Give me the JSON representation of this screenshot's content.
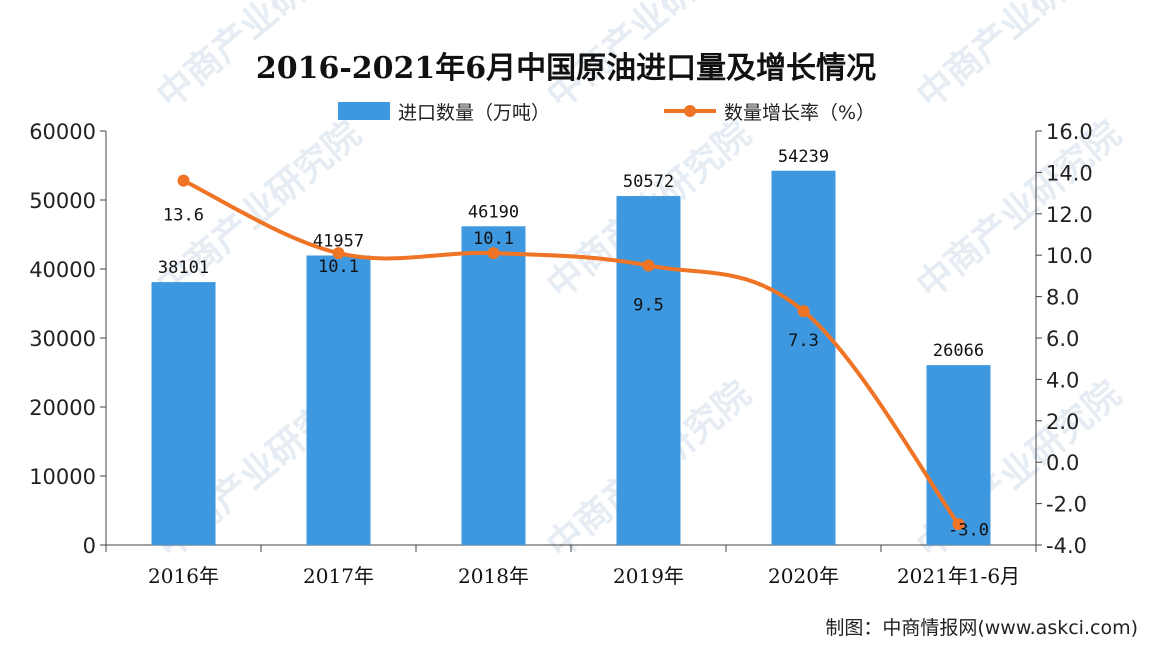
{
  "chart_data": {
    "type": "bar",
    "title": "2016-2021年6月中国原油进口量及增长情况",
    "categories": [
      "2016年",
      "2017年",
      "2018年",
      "2019年",
      "2020年",
      "2021年1-6月"
    ],
    "series": [
      {
        "name": "进口数量（万吨）",
        "type": "bar",
        "axis": "left",
        "color": "#3d98e0",
        "values": [
          38101,
          41957,
          46190,
          50572,
          54239,
          26066
        ],
        "labels": [
          "38101",
          "41957",
          "46190",
          "50572",
          "54239",
          "26066"
        ]
      },
      {
        "name": "数量增长率（%）",
        "type": "line",
        "axis": "right",
        "color": "#ef7425",
        "values": [
          13.6,
          10.1,
          10.1,
          9.5,
          7.3,
          -3.0
        ],
        "labels": [
          "13.6",
          "10.1",
          "10.1",
          "9.5",
          "7.3",
          "-3.0"
        ]
      }
    ],
    "y_left": {
      "ylim": [
        0,
        60000
      ],
      "ticks": [
        "0",
        "10000",
        "20000",
        "30000",
        "40000",
        "50000",
        "60000"
      ]
    },
    "y_right": {
      "ylim": [
        -4,
        16
      ],
      "ticks": [
        "-4.0",
        "-2.0",
        "0.0",
        "2.0",
        "4.0",
        "6.0",
        "8.0",
        "10.0",
        "12.0",
        "14.0",
        "16.0"
      ]
    },
    "legend": "top-center",
    "grid": false
  },
  "source": "制图：中商情报网(www.askci.com)",
  "watermark": "中商产业研究院"
}
